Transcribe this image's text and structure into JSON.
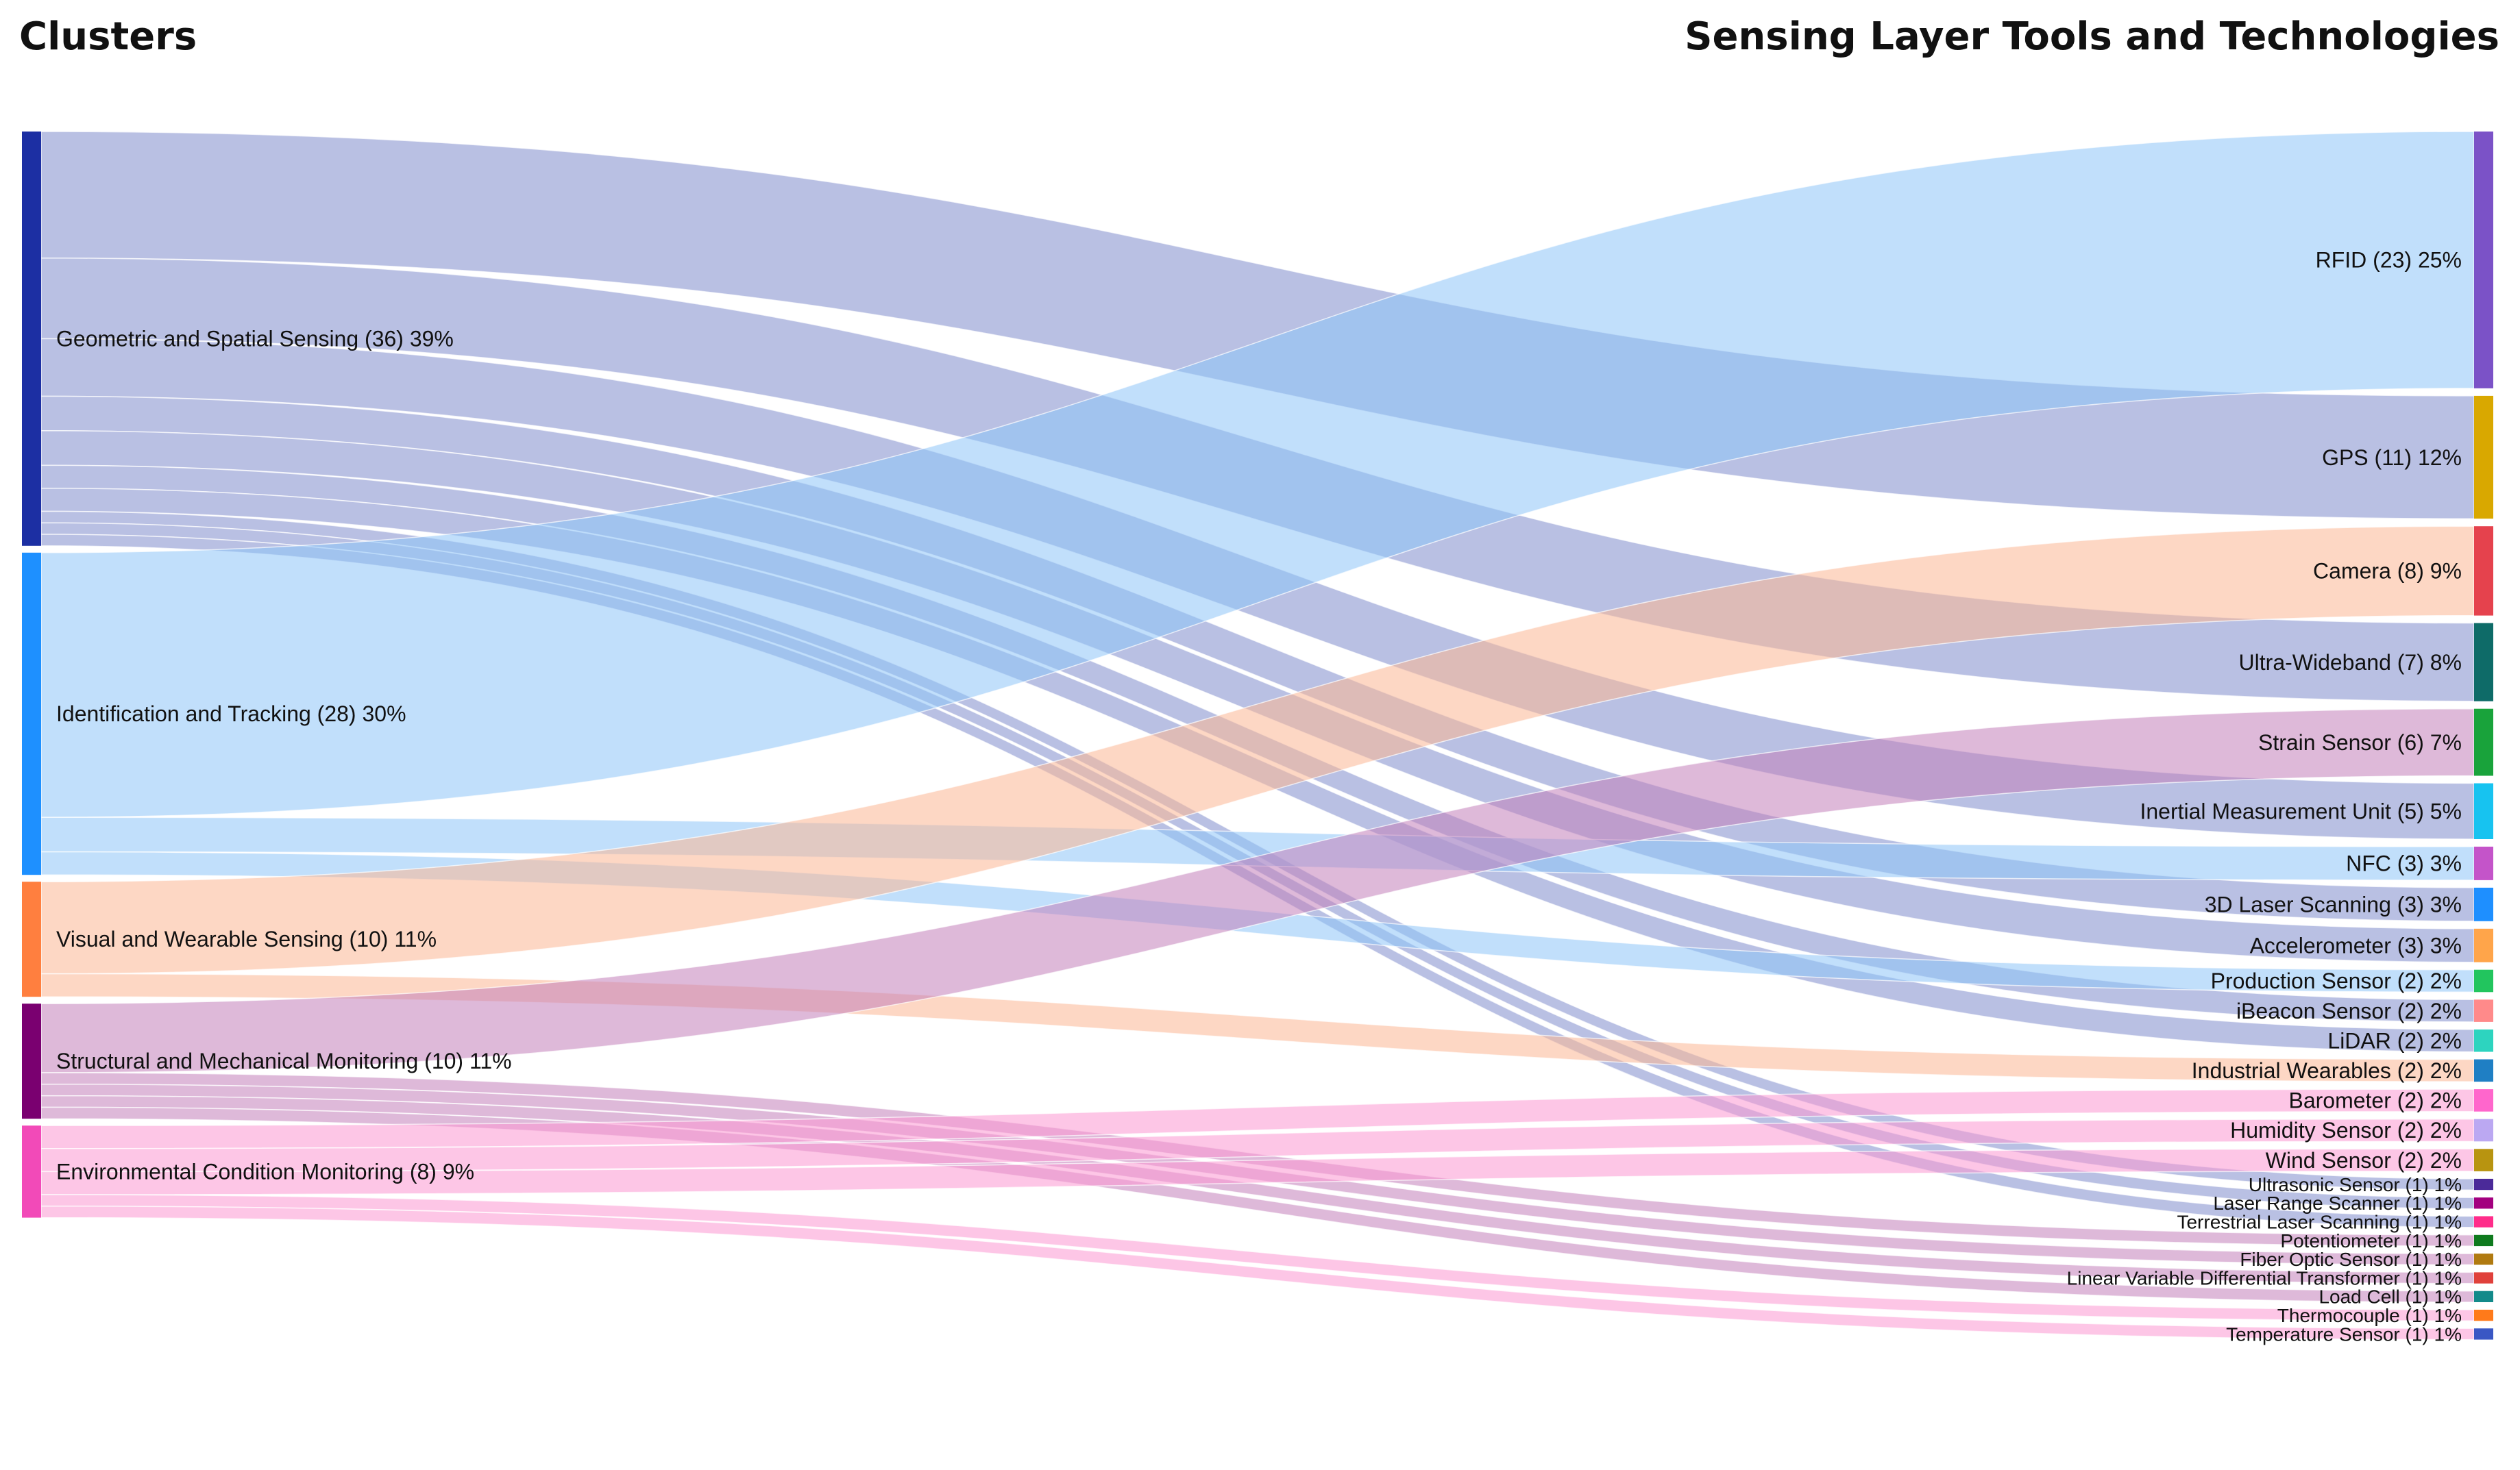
{
  "chart_data": {
    "type": "sankey",
    "headers": {
      "left": "Clusters",
      "right": "Sensing Layer Tools and Technologies"
    },
    "sources": [
      {
        "id": "geo",
        "label": "Geometric and Spatial Sensing (36) 39%",
        "value": 36,
        "color": "#1c2fa3",
        "link_color": "#7f8ccc"
      },
      {
        "id": "idt",
        "label": "Identification and Tracking (28) 30%",
        "value": 28,
        "color": "#1e90ff",
        "link_color": "#8ec4f7"
      },
      {
        "id": "vws",
        "label": "Visual and Wearable Sensing (10) 11%",
        "value": 10,
        "color": "#ff7f3f",
        "link_color": "#fbb694"
      },
      {
        "id": "smm",
        "label": "Structural and Mechanical Monitoring (10) 11%",
        "value": 10,
        "color": "#7a0070",
        "link_color": "#c27fb9"
      },
      {
        "id": "ecm",
        "label": "Environmental Condition Monitoring (8) 9%",
        "value": 8,
        "color": "#f24ab8",
        "link_color": "#fb98d2"
      }
    ],
    "targets": [
      {
        "id": "rfid",
        "label": "RFID (23) 25%",
        "value": 23,
        "color": "#7b52c7"
      },
      {
        "id": "gps",
        "label": "GPS (11) 12%",
        "value": 11,
        "color": "#d9a800"
      },
      {
        "id": "cam",
        "label": "Camera (8) 9%",
        "value": 8,
        "color": "#e5424d"
      },
      {
        "id": "uwb",
        "label": "Ultra-Wideband (7) 8%",
        "value": 7,
        "color": "#0e6b68"
      },
      {
        "id": "strain",
        "label": "Strain Sensor (6) 7%",
        "value": 6,
        "color": "#19a33b"
      },
      {
        "id": "imu",
        "label": "Inertial Measurement Unit (5) 5%",
        "value": 5,
        "color": "#17c3f0"
      },
      {
        "id": "nfc",
        "label": "NFC (3) 3%",
        "value": 3,
        "color": "#c454c9"
      },
      {
        "id": "3dl",
        "label": "3D Laser Scanning (3) 3%",
        "value": 3,
        "color": "#1e8fff"
      },
      {
        "id": "acc",
        "label": "Accelerometer (3) 3%",
        "value": 3,
        "color": "#ffa54a"
      },
      {
        "id": "prod",
        "label": "Production Sensor (2) 2%",
        "value": 2,
        "color": "#22c55e"
      },
      {
        "id": "ibeacon",
        "label": "iBeacon Sensor (2) 2%",
        "value": 2,
        "color": "#ff8a8a"
      },
      {
        "id": "lidar",
        "label": "LiDAR (2) 2%",
        "value": 2,
        "color": "#2dd4bf"
      },
      {
        "id": "indw",
        "label": "Industrial Wearables (2) 2%",
        "value": 2,
        "color": "#1f7fc4"
      },
      {
        "id": "baro",
        "label": "Barometer (2) 2%",
        "value": 2,
        "color": "#ff66cc"
      },
      {
        "id": "hum",
        "label": "Humidity Sensor (2) 2%",
        "value": 2,
        "color": "#bba8f2"
      },
      {
        "id": "wind",
        "label": "Wind Sensor (2) 2%",
        "value": 2,
        "color": "#b89410"
      },
      {
        "id": "ultra",
        "label": "Ultrasonic Sensor (1) 1%",
        "value": 1,
        "color": "#4b2a99"
      },
      {
        "id": "lrs",
        "label": "Laser Range Scanner (1) 1%",
        "value": 1,
        "color": "#a3007f"
      },
      {
        "id": "tls",
        "label": "Terrestrial Laser Scanning (1) 1%",
        "value": 1,
        "color": "#ff2d8a"
      },
      {
        "id": "pot",
        "label": "Potentiometer (1) 1%",
        "value": 1,
        "color": "#0f7a1e"
      },
      {
        "id": "fos",
        "label": "Fiber Optic Sensor (1) 1%",
        "value": 1,
        "color": "#b07a10"
      },
      {
        "id": "lvdt",
        "label": "Linear Variable Differential Transformer (1) 1%",
        "value": 1,
        "color": "#e0413b"
      },
      {
        "id": "load",
        "label": "Load Cell (1) 1%",
        "value": 1,
        "color": "#138a8a"
      },
      {
        "id": "thermo",
        "label": "Thermocouple (1) 1%",
        "value": 1,
        "color": "#ff7a1a"
      },
      {
        "id": "temp",
        "label": "Temperature Sensor (1) 1%",
        "value": 1,
        "color": "#3a57c4"
      }
    ],
    "links": [
      {
        "source": "geo",
        "target": "gps",
        "value": 11
      },
      {
        "source": "geo",
        "target": "uwb",
        "value": 7
      },
      {
        "source": "geo",
        "target": "imu",
        "value": 5
      },
      {
        "source": "geo",
        "target": "3dl",
        "value": 3
      },
      {
        "source": "geo",
        "target": "acc",
        "value": 3
      },
      {
        "source": "geo",
        "target": "ibeacon",
        "value": 2
      },
      {
        "source": "geo",
        "target": "lidar",
        "value": 2
      },
      {
        "source": "geo",
        "target": "ultra",
        "value": 1
      },
      {
        "source": "geo",
        "target": "lrs",
        "value": 1
      },
      {
        "source": "geo",
        "target": "tls",
        "value": 1
      },
      {
        "source": "idt",
        "target": "rfid",
        "value": 23
      },
      {
        "source": "idt",
        "target": "nfc",
        "value": 3
      },
      {
        "source": "idt",
        "target": "prod",
        "value": 2
      },
      {
        "source": "vws",
        "target": "cam",
        "value": 8
      },
      {
        "source": "vws",
        "target": "indw",
        "value": 2
      },
      {
        "source": "smm",
        "target": "strain",
        "value": 6
      },
      {
        "source": "smm",
        "target": "pot",
        "value": 1
      },
      {
        "source": "smm",
        "target": "fos",
        "value": 1
      },
      {
        "source": "smm",
        "target": "lvdt",
        "value": 1
      },
      {
        "source": "smm",
        "target": "load",
        "value": 1
      },
      {
        "source": "ecm",
        "target": "baro",
        "value": 2
      },
      {
        "source": "ecm",
        "target": "hum",
        "value": 2
      },
      {
        "source": "ecm",
        "target": "wind",
        "value": 2
      },
      {
        "source": "ecm",
        "target": "thermo",
        "value": 1
      },
      {
        "source": "ecm",
        "target": "temp",
        "value": 1
      }
    ]
  }
}
